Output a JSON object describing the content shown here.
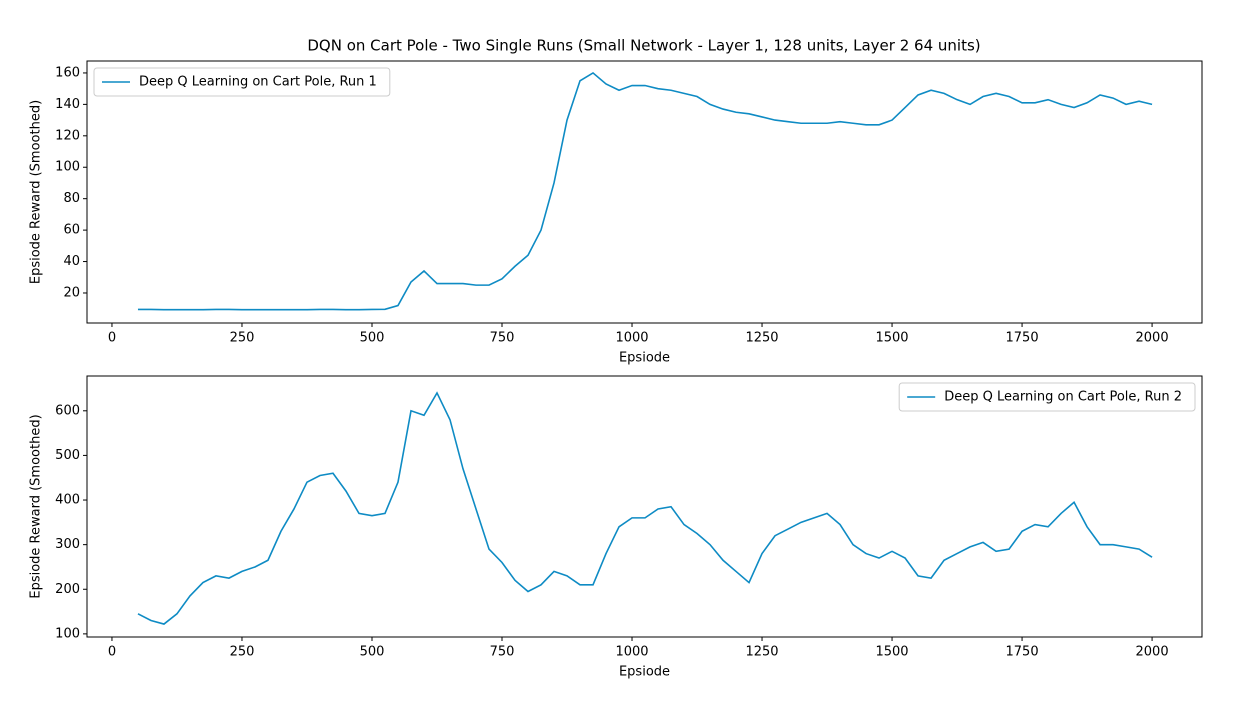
{
  "title": "DQN on Cart Pole - Two Single Runs (Small Network - Layer 1, 128 units, Layer 2 64 units)",
  "chart_data": [
    {
      "type": "line",
      "xlabel": "Epsiode",
      "ylabel": "Epsiode Reward (Smoothed)",
      "legend": "upper left",
      "xlim": [
        -48,
        2096
      ],
      "ylim": [
        0.9,
        167.6
      ],
      "xticks": [
        0,
        250,
        500,
        750,
        1000,
        1250,
        1500,
        1750,
        2000
      ],
      "yticks": [
        20,
        40,
        60,
        80,
        100,
        120,
        140,
        160
      ],
      "x": [
        50,
        75,
        100,
        125,
        150,
        175,
        200,
        225,
        250,
        275,
        300,
        325,
        350,
        375,
        400,
        425,
        450,
        475,
        500,
        525,
        550,
        575,
        600,
        625,
        650,
        675,
        700,
        725,
        750,
        775,
        800,
        825,
        850,
        875,
        900,
        925,
        950,
        975,
        1000,
        1025,
        1050,
        1075,
        1100,
        1125,
        1150,
        1175,
        1200,
        1225,
        1250,
        1275,
        1300,
        1325,
        1350,
        1375,
        1400,
        1425,
        1450,
        1475,
        1500,
        1525,
        1550,
        1575,
        1600,
        1625,
        1650,
        1675,
        1700,
        1725,
        1750,
        1775,
        1800,
        1825,
        1850,
        1875,
        1900,
        1925,
        1950,
        1975,
        2000
      ],
      "series": [
        {
          "name": "Deep Q Learning on Cart Pole, Run 1",
          "color": "#0e8bc4",
          "values": [
            9.5,
            9.5,
            9.4,
            9.4,
            9.4,
            9.4,
            9.5,
            9.5,
            9.4,
            9.4,
            9.4,
            9.4,
            9.4,
            9.4,
            9.5,
            9.5,
            9.4,
            9.4,
            9.5,
            9.6,
            12,
            27,
            34,
            26,
            26,
            26,
            25,
            25,
            29,
            37,
            44,
            60,
            90,
            130,
            155,
            160,
            153,
            149,
            152,
            152,
            150,
            149,
            147,
            145,
            140,
            137,
            135,
            134,
            132,
            130,
            129,
            128,
            128,
            128,
            129,
            128,
            127,
            127,
            130,
            138,
            146,
            149,
            147,
            143,
            140,
            145,
            147,
            145,
            141,
            141,
            143,
            140,
            138,
            141,
            146,
            144,
            140,
            142,
            140
          ]
        }
      ]
    },
    {
      "type": "line",
      "xlabel": "Epsiode",
      "ylabel": "Epsiode Reward (Smoothed)",
      "legend": "upper right",
      "xlim": [
        -48,
        2096
      ],
      "ylim": [
        93,
        678
      ],
      "xticks": [
        0,
        250,
        500,
        750,
        1000,
        1250,
        1500,
        1750,
        2000
      ],
      "yticks": [
        100,
        200,
        300,
        400,
        500,
        600
      ],
      "x": [
        50,
        75,
        100,
        125,
        150,
        175,
        200,
        225,
        250,
        275,
        300,
        325,
        350,
        375,
        400,
        425,
        450,
        475,
        500,
        525,
        550,
        575,
        600,
        625,
        650,
        675,
        700,
        725,
        750,
        775,
        800,
        825,
        850,
        875,
        900,
        925,
        950,
        975,
        1000,
        1025,
        1050,
        1075,
        1100,
        1125,
        1150,
        1175,
        1200,
        1225,
        1250,
        1275,
        1300,
        1325,
        1350,
        1375,
        1400,
        1425,
        1450,
        1475,
        1500,
        1525,
        1550,
        1575,
        1600,
        1625,
        1650,
        1675,
        1700,
        1725,
        1750,
        1775,
        1800,
        1825,
        1850,
        1875,
        1900,
        1925,
        1950,
        1975,
        2000
      ],
      "series": [
        {
          "name": "Deep Q Learning on Cart Pole, Run 2",
          "color": "#0e8bc4",
          "values": [
            145,
            130,
            122,
            145,
            185,
            215,
            230,
            225,
            240,
            250,
            265,
            330,
            380,
            440,
            455,
            460,
            420,
            370,
            365,
            370,
            440,
            600,
            590,
            640,
            580,
            470,
            380,
            290,
            260,
            220,
            195,
            210,
            240,
            230,
            210,
            210,
            280,
            340,
            360,
            360,
            380,
            385,
            345,
            325,
            300,
            265,
            240,
            215,
            280,
            320,
            335,
            350,
            360,
            370,
            345,
            300,
            280,
            270,
            285,
            270,
            230,
            225,
            265,
            280,
            295,
            305,
            285,
            290,
            330,
            345,
            340,
            370,
            395,
            340,
            300,
            300,
            295,
            290,
            272
          ]
        }
      ]
    }
  ]
}
